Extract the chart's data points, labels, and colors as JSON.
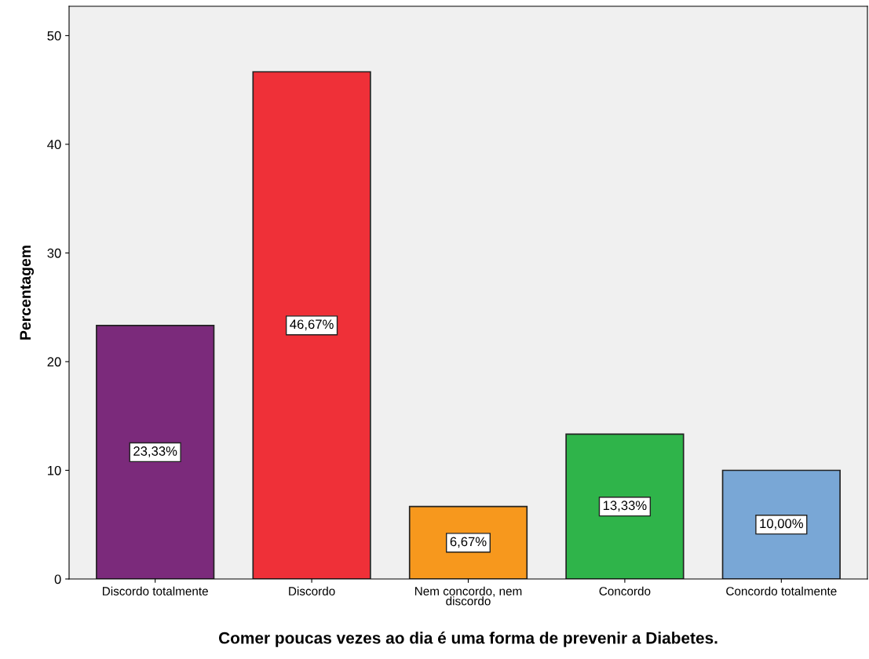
{
  "chart_data": {
    "type": "bar",
    "xlabel": "Comer poucas vezes ao dia é uma forma de prevenir a Diabetes.",
    "ylabel": "Percentagem",
    "categories": [
      "Discordo totalmente",
      "Discordo",
      "Nem concordo, nem\ndiscordo",
      "Concordo",
      "Concordo totalmente"
    ],
    "values": [
      23.33,
      46.67,
      6.67,
      13.33,
      10.0
    ],
    "value_labels": [
      "23,33%",
      "46,67%",
      "6,67%",
      "13,33%",
      "10,00%"
    ],
    "colors": [
      "#7b2a7b",
      "#ef3038",
      "#f7981d",
      "#2fb44a",
      "#79a7d6"
    ],
    "ylim": [
      0,
      52.7
    ],
    "yticks": [
      0,
      10,
      20,
      30,
      40,
      50
    ],
    "grid": false,
    "legend": false
  }
}
